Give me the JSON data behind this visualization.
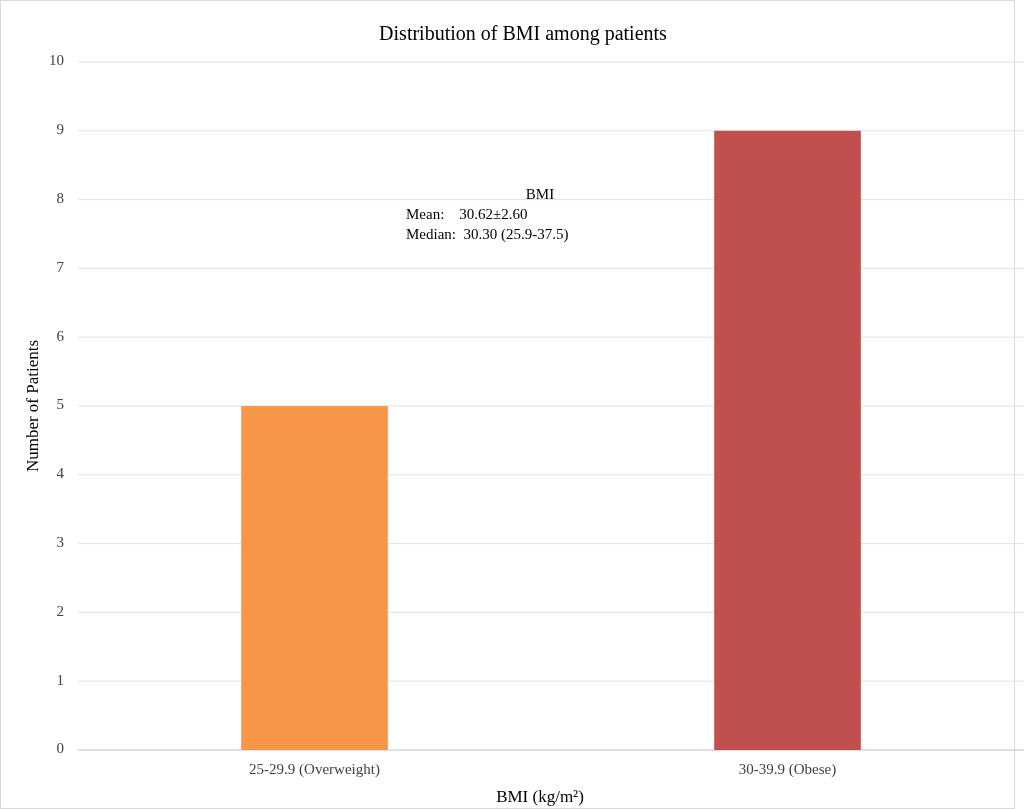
{
  "chart_data": {
    "type": "bar",
    "title": "Distribution of BMI among patients",
    "xlabel": "BMI (kg/m²)",
    "ylabel": "Number of Patients",
    "categories": [
      "25-29.9 (Overweight)",
      "30-39.9 (Obese)"
    ],
    "values": [
      5,
      9
    ],
    "colors": [
      "#f79646",
      "#c0504d"
    ],
    "ylim": [
      0,
      10
    ],
    "yticks": [
      0,
      1,
      2,
      3,
      4,
      5,
      6,
      7,
      8,
      9,
      10
    ],
    "grid": "y",
    "annotations": [
      "BMI",
      "Mean:    30.62±2.60",
      "Median:  30.30 (25.9-37.5)"
    ]
  }
}
